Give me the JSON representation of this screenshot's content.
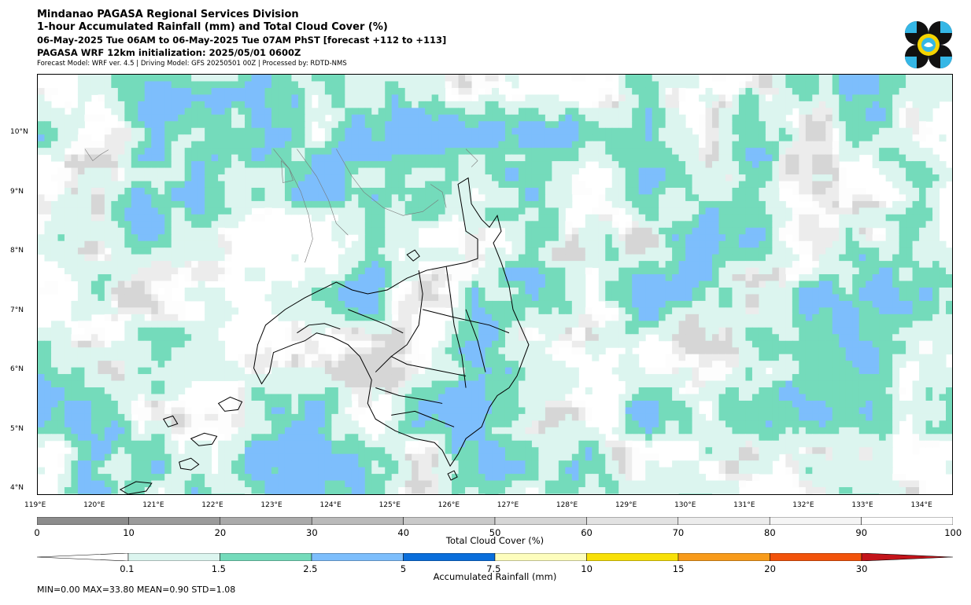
{
  "header": {
    "line1": "Mindanao PAGASA Regional Services Division",
    "line2": "1-hour Accumulated Rainfall (mm) and Total Cloud Cover (%)",
    "line3": "06-May-2025 Tue 06AM to 06-May-2025 Tue 07AM PhST [forecast +112 to +113]",
    "line4": "PAGASA WRF 12km initialization: 2025/05/01 0600Z",
    "line5": "Forecast Model: WRF ver. 4.5 | Driving Model: GFS 20250501 00Z | Processed by: RDTD-NMS"
  },
  "map": {
    "lon_range": [
      119,
      134.5
    ],
    "lat_range": [
      3.9,
      11.0
    ],
    "lon_ticks": [
      "119°E",
      "120°E",
      "121°E",
      "122°E",
      "123°E",
      "124°E",
      "125°E",
      "126°E",
      "127°E",
      "128°E",
      "129°E",
      "130°E",
      "131°E",
      "132°E",
      "133°E",
      "134°E"
    ],
    "lat_ticks": [
      "4°N",
      "5°N",
      "6°N",
      "7°N",
      "8°N",
      "9°N",
      "10°N"
    ]
  },
  "cloud_colorbar": {
    "title": "Total Cloud Cover (%)",
    "tick_labels": [
      "0",
      "10",
      "20",
      "30",
      "40",
      "50",
      "60",
      "70",
      "80",
      "90",
      "100"
    ],
    "colors": [
      "#8c8c8c",
      "#9b9b9b",
      "#aaaaaa",
      "#bababa",
      "#c9c9c9",
      "#d6d6d6",
      "#e2e2e2",
      "#ececec",
      "#f5f5f5",
      "#fdfdfd"
    ]
  },
  "rain_colorbar": {
    "title": "Accumulated Rainfall (mm)",
    "tick_labels": [
      "0.1",
      "1.5",
      "2.5",
      "5",
      "7.5",
      "10",
      "15",
      "20",
      "30"
    ],
    "colors": [
      "#dcf5ef",
      "#74dbbb",
      "#7dbefc",
      "#0a6edb",
      "#fdfdbd",
      "#f8e008",
      "#f89b1b",
      "#f2530b",
      "#c3141a"
    ]
  },
  "stats": "MIN=0.00   MAX=33.80   MEAN=0.90   STD=1.08",
  "logo": {
    "name": "pagasa-logo",
    "colors": [
      "#111111",
      "#35b7e6",
      "#f5d400"
    ]
  }
}
